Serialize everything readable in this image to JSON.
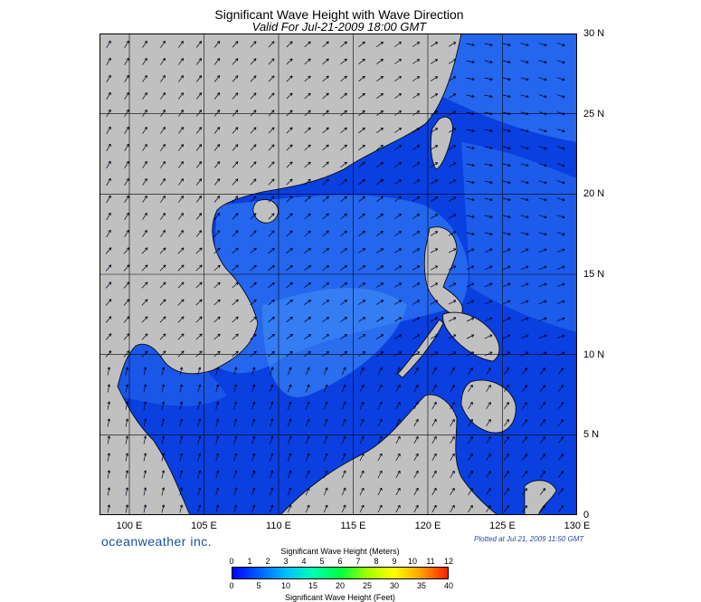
{
  "header": {
    "title": "Significant Wave Height with Wave Direction",
    "subtitle": "Valid For Jul-21-2009 18:00 GMT"
  },
  "map": {
    "lon_range": [
      98,
      130
    ],
    "lat_range": [
      0,
      30
    ],
    "lat_ticks": [
      {
        "value": 0,
        "label": "0"
      },
      {
        "value": 5,
        "label": "5 N"
      },
      {
        "value": 10,
        "label": "10 N"
      },
      {
        "value": 15,
        "label": "15 N"
      },
      {
        "value": 20,
        "label": "20 N"
      },
      {
        "value": 25,
        "label": "25 N"
      },
      {
        "value": 30,
        "label": "30 N"
      }
    ],
    "lon_ticks": [
      {
        "value": 100,
        "label": "100 E"
      },
      {
        "value": 105,
        "label": "105 E"
      },
      {
        "value": 110,
        "label": "110 E"
      },
      {
        "value": 115,
        "label": "115 E"
      },
      {
        "value": 120,
        "label": "120 E"
      },
      {
        "value": 125,
        "label": "125 E"
      },
      {
        "value": 130,
        "label": "130 E"
      }
    ],
    "colors": {
      "land": "#c0c0c0",
      "sea_deep": "#0a3fe0",
      "sea_light": "#2a70f0",
      "sea_lighter": "#3f8cf5",
      "arrow": "#00001a",
      "grid": "#000000"
    }
  },
  "footer": {
    "brand": "oceanweather inc.",
    "plotted": "Plotted at Jul 21, 2009 11:50 GMT"
  },
  "colorbar": {
    "title_meters": "Significant Wave Height (Meters)",
    "title_feet": "Significant Wave Height (Feet)",
    "meter_ticks": [
      "0",
      "1",
      "2",
      "3",
      "4",
      "5",
      "6",
      "7",
      "8",
      "9",
      "10",
      "11",
      "12"
    ],
    "feet_ticks": [
      "0",
      "5",
      "10",
      "15",
      "20",
      "25",
      "30",
      "35",
      "40"
    ],
    "colors": [
      "#0000ff",
      "#0060ff",
      "#00c0ff",
      "#00ffb0",
      "#00ff40",
      "#a0ff00",
      "#ffff00",
      "#ffa000",
      "#ff2000"
    ]
  }
}
